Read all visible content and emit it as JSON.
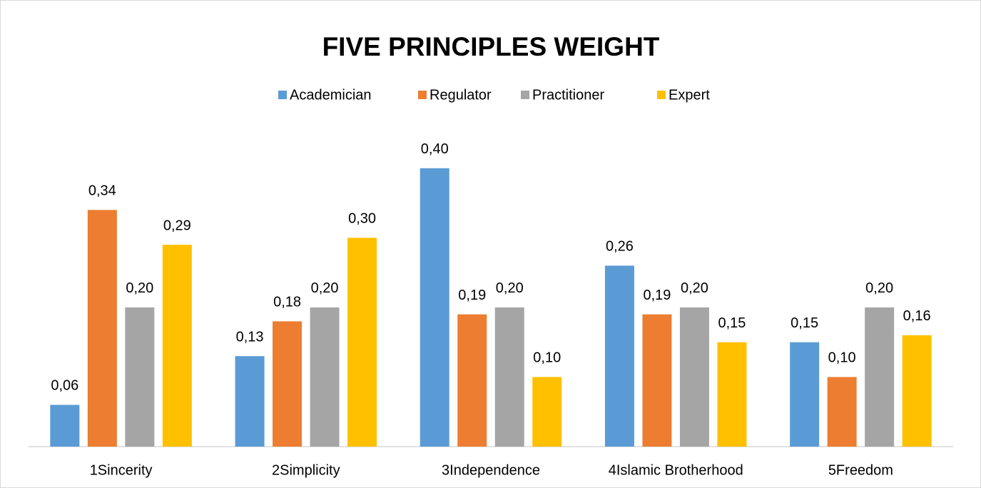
{
  "chart_data": {
    "type": "bar",
    "title": "FIVE PRINCIPLES WEIGHT",
    "categories": [
      "1Sincerity",
      "2Simplicity",
      "3Independence",
      "4Islamic Brotherhood",
      "5Freedom"
    ],
    "series": [
      {
        "name": "Academician",
        "color": "#5b9bd5",
        "values": [
          0.06,
          0.13,
          0.4,
          0.26,
          0.15
        ],
        "value_labels": [
          "0,06",
          "0,13",
          "0,40",
          "0,26",
          "0,15"
        ]
      },
      {
        "name": "Regulator",
        "color": "#ed7d31",
        "values": [
          0.34,
          0.18,
          0.19,
          0.19,
          0.1
        ],
        "value_labels": [
          "0,34",
          "0,18",
          "0,19",
          "0,19",
          "0,10"
        ]
      },
      {
        "name": "Practitioner",
        "color": "#a5a5a5",
        "values": [
          0.2,
          0.2,
          0.2,
          0.2,
          0.2
        ],
        "value_labels": [
          "0,20",
          "0,20",
          "0,20",
          "0,20",
          "0,20"
        ]
      },
      {
        "name": "Expert",
        "color": "#ffc000",
        "values": [
          0.29,
          0.3,
          0.1,
          0.15,
          0.16
        ],
        "value_labels": [
          "0,29",
          "0,30",
          "0,10",
          "0,15",
          "0,16"
        ]
      }
    ],
    "ylim": [
      0,
      0.45
    ],
    "legend": "top"
  }
}
